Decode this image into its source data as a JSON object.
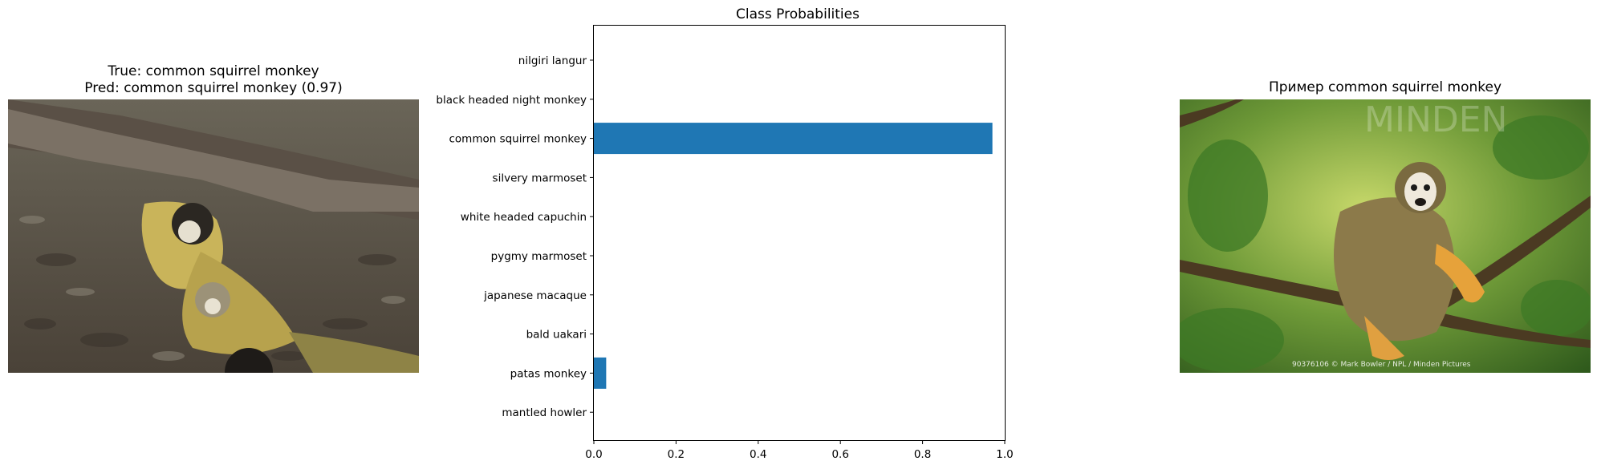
{
  "left_panel": {
    "title_line1": "True: common squirrel monkey",
    "title_line2": "Pred: common squirrel monkey (0.97)"
  },
  "right_panel": {
    "title": "Пример common squirrel monkey",
    "credit": "90376106 © Mark Bowler / NPL / Minden Pictures",
    "logo_text": "MINDEN"
  },
  "colors": {
    "bar": "#1f77b4"
  },
  "chart_data": {
    "type": "bar",
    "orientation": "horizontal",
    "title": "Class Probabilities",
    "xlabel": "",
    "ylabel": "",
    "xlim": [
      0,
      1.0
    ],
    "xticks": [
      "0.0",
      "0.2",
      "0.4",
      "0.6",
      "0.8",
      "1.0"
    ],
    "categories": [
      "nilgiri langur",
      "black headed night monkey",
      "common squirrel monkey",
      "silvery marmoset",
      "white headed capuchin",
      "pygmy marmoset",
      "japanese macaque",
      "bald uakari",
      "patas monkey",
      "mantled howler"
    ],
    "values": [
      0.0,
      0.0,
      0.97,
      0.0,
      0.0,
      0.0,
      0.0,
      0.0,
      0.03,
      0.0
    ],
    "grid": false
  }
}
